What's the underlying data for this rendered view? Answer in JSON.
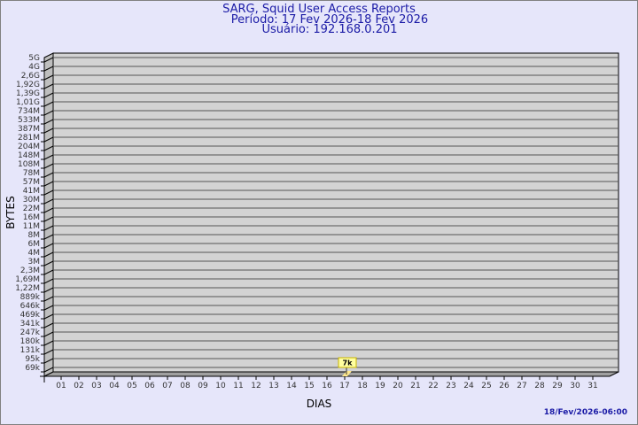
{
  "chart_data": {
    "type": "bar",
    "title": "SARG, Squid User Access Reports",
    "subtitle": "Período: 17 Fev 2026-18 Fev 2026",
    "user": "Usuário: 192.168.0.201",
    "xlabel": "DIAS",
    "ylabel": "BYTES",
    "y_scale": "log",
    "y_ticks": [
      "5G",
      "4G",
      "2,6G",
      "1,92G",
      "1,39G",
      "1,01G",
      "734M",
      "533M",
      "387M",
      "281M",
      "204M",
      "148M",
      "108M",
      "78M",
      "57M",
      "41M",
      "30M",
      "22M",
      "16M",
      "11M",
      "8M",
      "6M",
      "4M",
      "3M",
      "2,3M",
      "1,69M",
      "1,22M",
      "889k",
      "646k",
      "469k",
      "341k",
      "247k",
      "180k",
      "131k",
      "95k",
      "69k"
    ],
    "categories": [
      "01",
      "02",
      "03",
      "04",
      "05",
      "06",
      "07",
      "08",
      "09",
      "10",
      "11",
      "12",
      "13",
      "14",
      "15",
      "16",
      "17",
      "18",
      "19",
      "20",
      "21",
      "22",
      "23",
      "24",
      "25",
      "26",
      "27",
      "28",
      "29",
      "30",
      "31"
    ],
    "bars": [
      {
        "day": "17",
        "value_label": "7k"
      }
    ],
    "grid": true,
    "colors": {
      "background": "#e6e6fa",
      "plot": "#d3d3d3",
      "wall": "#bebebe",
      "bar": "#ffe88c",
      "label_box": "#ffffa0",
      "title": "#1a1aa6"
    }
  },
  "footer": {
    "timestamp": "18/Fev/2026-06:00"
  }
}
